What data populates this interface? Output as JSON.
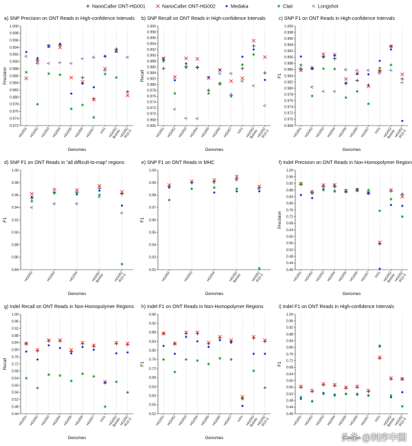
{
  "colors": {
    "nanocaller_hg001": "#222222",
    "nanocaller_hg002": "#e8302f",
    "medaka": "#1a2ed8",
    "clair": "#1a9a2a",
    "longshot": "#6a6aa8"
  },
  "legend": [
    {
      "key": "nanocaller_hg001",
      "label": "NanoCaller ONT-HG001",
      "marker": "plus"
    },
    {
      "key": "nanocaller_hg002",
      "label": "NanoCaller ONT-HG002",
      "marker": "x"
    },
    {
      "key": "medaka",
      "label": "Medaka",
      "marker": "dot"
    },
    {
      "key": "clair",
      "label": "Clair",
      "marker": "star"
    },
    {
      "key": "longshot",
      "label": "Longshot",
      "marker": "tri"
    }
  ],
  "watermark": "头条 @刺序中国",
  "chart_data": [
    {
      "id": "a",
      "type": "scatter",
      "title": "a)  SNP Precision on ONT Reads in High-confidence Intervals",
      "xlabel": "Genomes",
      "ylabel": "Precision",
      "ylim": [
        0.972,
        1.0
      ],
      "ystep": 0.002,
      "ydecimals": 3,
      "categories": [
        "HG001",
        "HG002",
        "HG003",
        "HG004",
        "HG005",
        "HG006",
        "HG007",
        "HX1",
        "HG002 Bonito",
        "HG002 R10.3"
      ],
      "series": [
        {
          "key": "nanocaller_hg001",
          "values": [
            null,
            0.9905,
            0.9945,
            0.9947,
            null,
            0.9855,
            0.9795,
            0.9915,
            0.9935,
            0.9815
          ]
        },
        {
          "key": "nanocaller_hg002",
          "values": [
            0.9853,
            0.9898,
            0.9943,
            0.994,
            0.9855,
            0.9843,
            0.9793,
            0.988,
            0.993,
            0.9805
          ]
        },
        {
          "key": "medaka",
          "values": [
            0.9927,
            0.991,
            0.9942,
            0.995,
            0.981,
            0.9838,
            0.9828,
            0.9915,
            0.9928,
            null
          ]
        },
        {
          "key": "clair",
          "values": [
            0.987,
            0.978,
            0.9866,
            0.9863,
            0.9767,
            0.9778,
            0.9743,
            0.9865,
            0.9855,
            null
          ]
        },
        {
          "key": "longshot",
          "values": [
            0.9915,
            0.9895,
            0.9895,
            0.9897,
            0.9895,
            0.9908,
            0.9912,
            0.9875,
            0.993,
            0.9912
          ]
        }
      ]
    },
    {
      "id": "b",
      "type": "scatter",
      "title": "b)  SNP Recall on ONT Reads in High-confidence Intervals",
      "xlabel": "Genomes",
      "ylabel": "Recall",
      "ylim": [
        0.966,
        1.0
      ],
      "ystep": 0.002,
      "ydecimals": 3,
      "categories": [
        "HG001",
        "HG002",
        "HG003",
        "HG004",
        "HG005",
        "HG006",
        "HG007",
        "HX1",
        "HG002 Bonito",
        "HG002 R10.3"
      ],
      "series": [
        {
          "key": "nanocaller_hg001",
          "values": [
            0.9855,
            null,
            0.9862,
            0.9858,
            0.978,
            0.9802,
            0.9765,
            0.9855,
            0.9932,
            0.984
          ]
        },
        {
          "key": "nanocaller_hg002",
          "values": [
            0.989,
            0.9826,
            0.989,
            0.9888,
            0.9822,
            0.985,
            0.9812,
            0.9822,
            0.995,
            0.9894
          ]
        },
        {
          "key": "medaka",
          "values": [
            0.9885,
            0.9815,
            0.9872,
            0.986,
            0.9825,
            0.985,
            null,
            0.9895,
            0.992,
            0.9816
          ]
        },
        {
          "key": "clair",
          "values": [
            0.988,
            0.977,
            0.9858,
            0.986,
            0.977,
            0.9805,
            0.976,
            0.9868,
            0.9903,
            null
          ]
        },
        {
          "key": "longshot",
          "values": [
            0.989,
            0.9716,
            0.9685,
            0.9684,
            0.9825,
            0.9838,
            0.9838,
            0.9812,
            0.9796,
            0.9728
          ]
        }
      ]
    },
    {
      "id": "c",
      "type": "scatter",
      "title": "c)  SNP F1 on ONT Reads in High-confidence Intervals",
      "xlabel": "Genomes",
      "ylabel": "F1",
      "ylim": [
        0.968,
        1.0
      ],
      "ystep": 0.002,
      "ydecimals": 3,
      "categories": [
        "HG001",
        "HG002",
        "HG003",
        "HG004",
        "HG005",
        "HG006",
        "HG007",
        "HX1",
        "HG002 Bonito",
        "HG002 R10.3"
      ],
      "series": [
        {
          "key": "nanocaller_hg001",
          "values": [
            0.986,
            0.9865,
            0.9902,
            0.9895,
            0.9815,
            0.9825,
            0.981,
            0.9855,
            0.9935,
            0.983
          ]
        },
        {
          "key": "nanocaller_hg002",
          "values": [
            0.9858,
            0.9865,
            0.991,
            0.9908,
            0.983,
            0.9848,
            0.9806,
            0.9855,
            0.9935,
            0.9845
          ]
        },
        {
          "key": "medaka",
          "values": [
            0.9902,
            0.9862,
            0.99,
            0.9905,
            0.9818,
            0.9846,
            0.9845,
            0.9888,
            0.9925,
            0.9695
          ]
        },
        {
          "key": "clair",
          "values": [
            0.9875,
            0.9775,
            0.9863,
            0.9862,
            0.977,
            0.979,
            0.975,
            0.9865,
            0.9875,
            null
          ]
        },
        {
          "key": "longshot",
          "values": [
            0.9865,
            0.9804,
            0.979,
            0.979,
            0.986,
            0.9858,
            0.9858,
            0.9848,
            0.9858,
            0.9818
          ]
        }
      ]
    },
    {
      "id": "d",
      "type": "scatter",
      "title": "d)  SNP F1 on ONT Reads in \"all difficult-to-map\" regions",
      "xlabel": "Genomes",
      "ylabel": "F1",
      "ylim": [
        0.84,
        1.0
      ],
      "ystep": 0.02,
      "ydecimals": 2,
      "categories": [
        "HG002",
        "HG003",
        "HG004",
        "HG002 Bonito",
        "HG002 R10.3"
      ],
      "series": [
        {
          "key": "nanocaller_hg001",
          "values": [
            0.955,
            0.964,
            0.964,
            0.971,
            0.962
          ]
        },
        {
          "key": "nanocaller_hg002",
          "values": [
            0.962,
            0.969,
            0.968,
            0.975,
            0.965
          ]
        },
        {
          "key": "medaka",
          "values": [
            0.957,
            0.963,
            0.961,
            0.967,
            0.943
          ]
        },
        {
          "key": "clair",
          "values": [
            0.95,
            0.964,
            0.963,
            0.96,
            0.849
          ]
        },
        {
          "key": "longshot",
          "values": [
            0.94,
            0.946,
            0.946,
            0.957,
            0.931
          ]
        }
      ]
    },
    {
      "id": "e",
      "type": "scatter",
      "title": "e)  SNP F1 on ONT Reads in MHC",
      "xlabel": "Genomes",
      "ylabel": "F1",
      "ylim": [
        0.92,
        1.0
      ],
      "ystep": 0.01,
      "ydecimals": 2,
      "categories": [
        "HG002",
        "HG003",
        "HG004",
        "HG002 Bonito",
        "HG002 R10.3"
      ],
      "series": [
        {
          "key": "nanocaller_hg001",
          "values": [
            0.987,
            0.99,
            0.991,
            0.993,
            0.986
          ]
        },
        {
          "key": "nanocaller_hg002",
          "values": [
            0.988,
            0.991,
            0.992,
            0.995,
            0.987
          ]
        },
        {
          "key": "medaka",
          "values": [
            0.986,
            0.99,
            0.982,
            0.983,
            0.983
          ]
        },
        {
          "key": "clair",
          "values": [
            0.976,
            0.985,
            0.986,
            0.985,
            0.921
          ]
        },
        {
          "key": "longshot",
          "values": [
            0.987,
            0.99,
            0.99,
            0.992,
            0.985
          ]
        }
      ]
    },
    {
      "id": "f",
      "type": "scatter",
      "title": "f)  Indel Precision on ONT Reads in Non-Homopolymer Regions",
      "xlabel": "Genomes",
      "ylabel": "Precision",
      "ylim": [
        0.4,
        1.0
      ],
      "ystep": 0.04,
      "ydecimals": 2,
      "categories": [
        "HG001",
        "HG002",
        "HG003",
        "HG004",
        "HG005",
        "HG006",
        "HG007",
        "HX1",
        "HG002 Bonito",
        "HG002 R10.3"
      ],
      "series": [
        {
          "key": "nanocaller_hg001",
          "values": [
            0.915,
            0.865,
            0.905,
            0.9,
            0.87,
            0.88,
            0.86,
            0.555,
            0.875,
            0.855
          ]
        },
        {
          "key": "nanocaller_hg002",
          "values": [
            0.918,
            0.87,
            0.91,
            0.912,
            0.875,
            0.882,
            0.862,
            0.565,
            0.88,
            0.84
          ]
        },
        {
          "key": "medaka",
          "values": [
            0.85,
            0.832,
            0.885,
            0.875,
            0.87,
            0.885,
            0.865,
            0.405,
            0.79,
            0.785
          ]
        },
        {
          "key": "clair",
          "values": [
            0.92,
            0.86,
            0.88,
            0.872,
            0.88,
            0.875,
            0.88,
            0.755,
            0.825,
            0.72
          ]
        },
        {
          "key": "longshot",
          "values": [
            null,
            0.87,
            0.9,
            0.91,
            null,
            null,
            null,
            null,
            null,
            null
          ]
        }
      ]
    },
    {
      "id": "g",
      "type": "scatter",
      "title": "g)  Indel Recall on ONT Reads in Non-Homopolymer Regions",
      "xlabel": "Genomes",
      "ylabel": "Recall",
      "ylim": [
        0.44,
        1.0
      ],
      "ystep": 0.04,
      "ydecimals": 2,
      "categories": [
        "HG001",
        "HG002",
        "HG003",
        "HG004",
        "HG005",
        "HG006",
        "HG007",
        "HX1",
        "HG002 Bonito",
        "HG002 R10.3"
      ],
      "series": [
        {
          "key": "nanocaller_hg001",
          "values": [
            0.835,
            0.795,
            0.85,
            0.85,
            0.79,
            0.835,
            0.82,
            0.615,
            0.835,
            0.83
          ]
        },
        {
          "key": "nanocaller_hg002",
          "values": [
            0.835,
            0.8,
            0.855,
            0.855,
            0.8,
            0.84,
            0.825,
            0.62,
            0.84,
            0.835
          ]
        },
        {
          "key": "medaka",
          "values": [
            0.79,
            0.745,
            0.825,
            0.81,
            0.78,
            0.815,
            0.8,
            0.615,
            0.78,
            0.785
          ]
        },
        {
          "key": "clair",
          "values": [
            0.64,
            0.585,
            0.66,
            0.655,
            0.625,
            0.665,
            0.65,
            0.48,
            0.62,
            0.56
          ]
        },
        {
          "key": "longshot",
          "values": [
            null,
            null,
            null,
            null,
            null,
            null,
            null,
            null,
            null,
            null
          ]
        }
      ]
    },
    {
      "id": "h",
      "type": "scatter",
      "title": "h)  Indel F1 on ONT Reads in Non-Homopolymer Regions",
      "xlabel": "Genomes",
      "ylabel": "F1",
      "ylim": [
        0.52,
        0.96
      ],
      "ystep": 0.04,
      "ydecimals": 2,
      "categories": [
        "HG001",
        "HG002",
        "HG003",
        "HG004",
        "HG005",
        "HG006",
        "HG007",
        "HX1",
        "HG002 Bonito",
        "HG002 R10.3"
      ],
      "series": [
        {
          "key": "nanocaller_hg001",
          "values": [
            0.875,
            0.83,
            0.875,
            0.875,
            0.83,
            0.855,
            0.84,
            0.59,
            0.855,
            0.84
          ]
        },
        {
          "key": "nanocaller_hg002",
          "values": [
            0.875,
            0.83,
            0.88,
            0.88,
            0.835,
            0.86,
            0.845,
            0.595,
            0.86,
            0.845
          ]
        },
        {
          "key": "medaka",
          "values": [
            0.82,
            0.785,
            0.86,
            0.84,
            0.815,
            0.845,
            0.835,
            0.555,
            0.785,
            0.785
          ]
        },
        {
          "key": "clair",
          "values": [
            0.76,
            0.705,
            0.76,
            0.755,
            0.74,
            0.765,
            0.76,
            0.585,
            0.71,
            0.635
          ]
        },
        {
          "key": "longshot",
          "values": [
            null,
            null,
            null,
            null,
            null,
            null,
            null,
            null,
            null,
            null
          ]
        }
      ]
    },
    {
      "id": "i",
      "type": "scatter",
      "title": "i)  Indel F1 on ONT Reads in High-confidence Intervals",
      "xlabel": "Genomes",
      "ylabel": "F1",
      "ylim": [
        0.4,
        1.0
      ],
      "ystep": 0.04,
      "ydecimals": 2,
      "categories": [
        "HG001",
        "HG002",
        "HG003",
        "HG004",
        "HG005",
        "HG006",
        "HG007",
        "HX1",
        "HG002 Bonito",
        "HG002 R10.3"
      ],
      "series": [
        {
          "key": "nanocaller_hg001",
          "values": [
            0.56,
            0.535,
            0.575,
            0.57,
            0.555,
            0.56,
            0.535,
            0.735,
            0.61,
            0.61
          ]
        },
        {
          "key": "nanocaller_hg002",
          "values": [
            0.565,
            0.54,
            0.58,
            0.575,
            0.56,
            0.565,
            0.54,
            0.74,
            0.615,
            0.61
          ]
        },
        {
          "key": "medaka",
          "values": [
            0.49,
            0.475,
            0.525,
            0.515,
            0.52,
            0.515,
            0.51,
            0.81,
            0.5,
            0.53
          ]
        },
        {
          "key": "clair",
          "values": [
            0.5,
            0.475,
            0.52,
            0.51,
            0.52,
            0.52,
            0.51,
            0.805,
            0.51,
            0.445
          ]
        },
        {
          "key": "longshot",
          "values": [
            null,
            null,
            null,
            null,
            null,
            null,
            null,
            null,
            null,
            null
          ]
        }
      ]
    }
  ]
}
